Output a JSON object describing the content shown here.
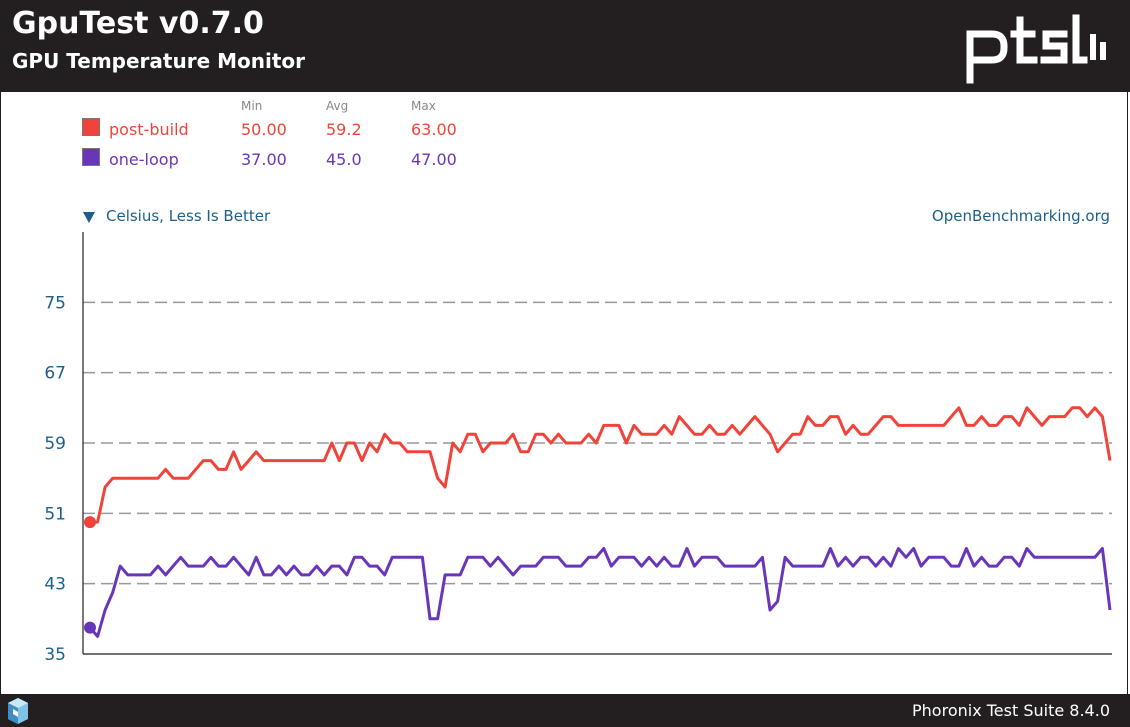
{
  "header": {
    "title": "GpuTest v0.7.0",
    "subtitle": "GPU Temperature Monitor"
  },
  "footer": {
    "text": "Phoronix Test Suite 8.4.0"
  },
  "legend": {
    "headers": {
      "min": "Min",
      "avg": "Avg",
      "max": "Max"
    },
    "entries": [
      {
        "name": "post-build",
        "color": "#f0443a",
        "min": "50.00",
        "avg": "59.2",
        "max": "63.00"
      },
      {
        "name": "one-loop",
        "color": "#6a36b9",
        "min": "37.00",
        "avg": "45.0",
        "max": "47.00"
      }
    ]
  },
  "unit_label": "Celsius, Less Is Better",
  "source": "OpenBenchmarking.org",
  "chart_data": {
    "type": "line",
    "ylim": [
      35,
      83
    ],
    "yticks": [
      35,
      43,
      51,
      59,
      67,
      75
    ],
    "grid": true,
    "legend_position": "top-left",
    "series": [
      {
        "name": "post-build",
        "color": "#f0443a",
        "values": [
          50,
          50,
          54,
          55,
          55,
          55,
          55,
          55,
          55,
          55,
          56,
          55,
          55,
          55,
          56,
          57,
          57,
          56,
          56,
          58,
          56,
          57,
          58,
          57,
          57,
          57,
          57,
          57,
          57,
          57,
          57,
          57,
          59,
          57,
          59,
          59,
          57,
          59,
          58,
          60,
          59,
          59,
          58,
          58,
          58,
          58,
          55,
          54,
          59,
          58,
          60,
          60,
          58,
          59,
          59,
          59,
          60,
          58,
          58,
          60,
          60,
          59,
          60,
          59,
          59,
          59,
          60,
          59,
          61,
          61,
          61,
          59,
          61,
          60,
          60,
          60,
          61,
          60,
          62,
          61,
          60,
          60,
          61,
          60,
          60,
          61,
          60,
          61,
          62,
          61,
          60,
          58,
          59,
          60,
          60,
          62,
          61,
          61,
          62,
          62,
          60,
          61,
          60,
          60,
          61,
          62,
          62,
          61,
          61,
          61,
          61,
          61,
          61,
          61,
          62,
          63,
          61,
          61,
          62,
          61,
          61,
          62,
          62,
          61,
          63,
          62,
          61,
          62,
          62,
          62,
          63,
          63,
          62,
          63,
          62,
          57
        ]
      },
      {
        "name": "one-loop",
        "color": "#6a36b9",
        "values": [
          38,
          37,
          40,
          42,
          45,
          44,
          44,
          44,
          44,
          45,
          44,
          45,
          46,
          45,
          45,
          45,
          46,
          45,
          45,
          46,
          45,
          44,
          46,
          44,
          44,
          45,
          44,
          45,
          44,
          44,
          45,
          44,
          45,
          45,
          44,
          46,
          46,
          45,
          45,
          44,
          46,
          46,
          46,
          46,
          46,
          39,
          39,
          44,
          44,
          44,
          46,
          46,
          46,
          45,
          46,
          45,
          44,
          45,
          45,
          45,
          46,
          46,
          46,
          45,
          45,
          45,
          46,
          46,
          47,
          45,
          46,
          46,
          46,
          45,
          46,
          45,
          46,
          45,
          45,
          47,
          45,
          46,
          46,
          46,
          45,
          45,
          45,
          45,
          45,
          46,
          40,
          41,
          46,
          45,
          45,
          45,
          45,
          45,
          47,
          45,
          46,
          45,
          46,
          46,
          45,
          46,
          45,
          47,
          46,
          47,
          45,
          46,
          46,
          46,
          45,
          45,
          47,
          45,
          46,
          45,
          45,
          46,
          46,
          45,
          47,
          46,
          46,
          46,
          46,
          46,
          46,
          46,
          46,
          46,
          47,
          40
        ]
      }
    ]
  }
}
